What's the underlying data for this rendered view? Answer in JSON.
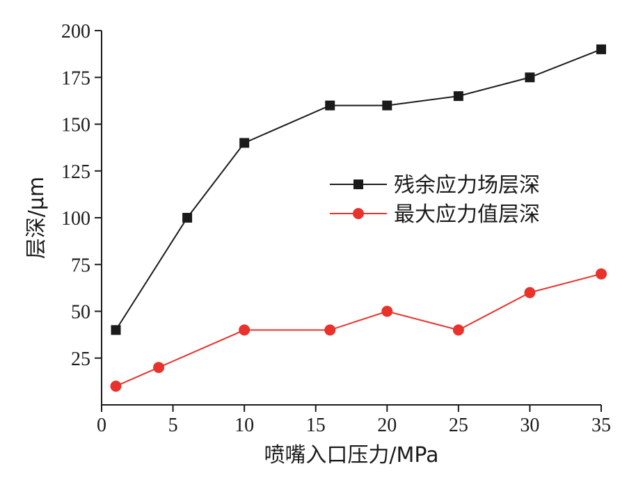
{
  "chart_data": {
    "type": "line",
    "xlabel": "喷嘴入口压力/MPa",
    "ylabel": "层深/μm",
    "xlim": [
      0,
      35
    ],
    "ylim": [
      0,
      200
    ],
    "x_ticks": [
      0,
      5,
      10,
      15,
      20,
      25,
      30,
      35
    ],
    "y_ticks": [
      25,
      50,
      75,
      100,
      125,
      150,
      175,
      200
    ],
    "legend_position": "center-right",
    "grid": false,
    "series": [
      {
        "name": "残余应力场层深",
        "color": "#1a1a1a",
        "marker": "square",
        "points": [
          [
            1,
            40
          ],
          [
            6,
            100
          ],
          [
            10,
            140
          ],
          [
            16,
            160
          ],
          [
            20,
            160
          ],
          [
            25,
            165
          ],
          [
            30,
            175
          ],
          [
            35,
            190
          ]
        ]
      },
      {
        "name": "最大应力值层深",
        "color": "#e8322b",
        "marker": "circle",
        "points": [
          [
            1,
            10
          ],
          [
            4,
            20
          ],
          [
            10,
            40
          ],
          [
            16,
            40
          ],
          [
            20,
            50
          ],
          [
            25,
            40
          ],
          [
            30,
            60
          ],
          [
            35,
            70
          ]
        ]
      }
    ]
  }
}
